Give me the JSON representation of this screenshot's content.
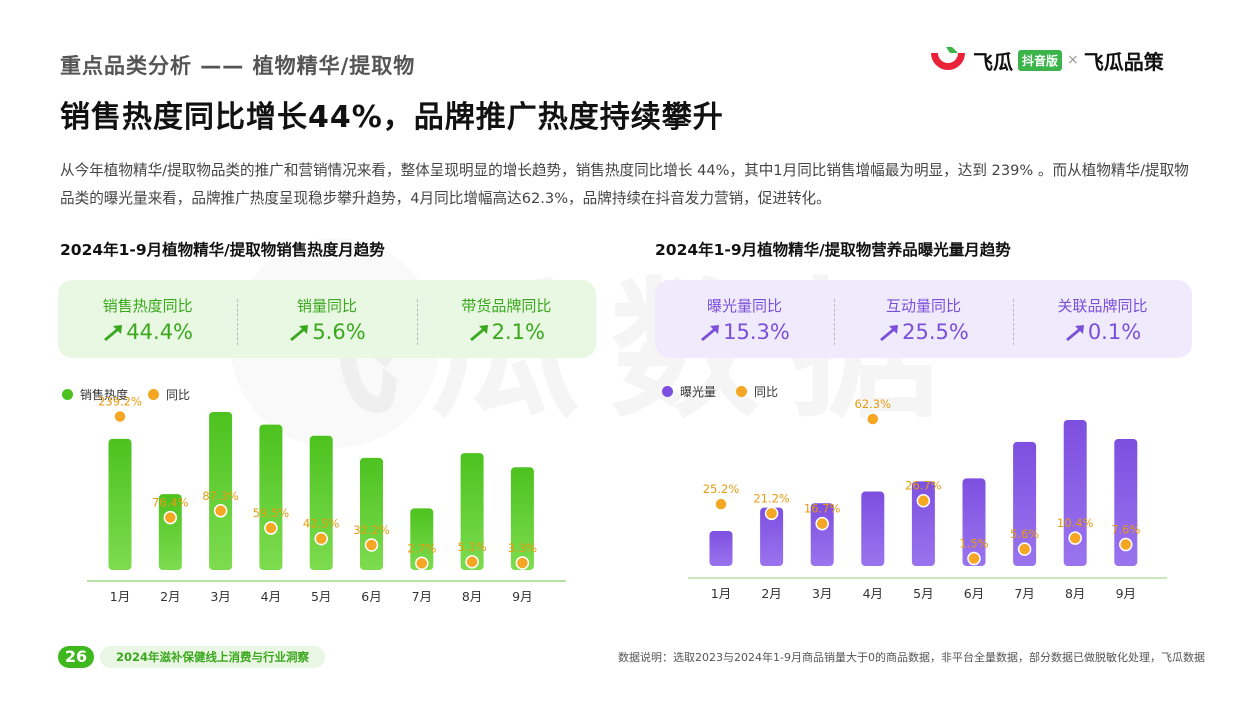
{
  "header": {
    "section_title": "重点品类分析 —— 植物精华/提取物",
    "headline": "销售热度同比增长44%，品牌推广热度持续攀升",
    "paragraph": "从今年植物精华/提取物品类的推广和营销情况来看，整体呈现明显的增长趋势，销售热度同比增长 44%，其中1月同比销售增幅最为明显，达到 239% 。而从植物精华/提取物品类的曝光量来看，品牌推广热度呈现稳步攀升趋势，4月同比增幅高达62.3%，品牌持续在抖音发力营销，促进转化。"
  },
  "brand": {
    "name1": "飞瓜",
    "badge": "抖音版",
    "separator": "×",
    "name2": "飞瓜品策"
  },
  "watermark": "飞瓜数据",
  "left": {
    "title": "2024年1-9月植物精华/提取物销售热度月趋势",
    "metrics": [
      {
        "label": "销售热度同比",
        "value": "44.4%"
      },
      {
        "label": "销量同比",
        "value": "5.6%"
      },
      {
        "label": "带货品牌同比",
        "value": "2.1%"
      }
    ],
    "legend": {
      "bar": "销售热度",
      "dot": "同比"
    }
  },
  "right": {
    "title": "2024年1-9月植物精华/提取物营养品曝光量月趋势",
    "metrics": [
      {
        "label": "曝光量同比",
        "value": "15.3%"
      },
      {
        "label": "互动量同比",
        "value": "25.5%"
      },
      {
        "label": "关联品牌同比",
        "value": "0.1%"
      }
    ],
    "legend": {
      "bar": "曝光量",
      "dot": "同比"
    }
  },
  "colors": {
    "green": "#4cc21f",
    "purple": "#7d4fe0",
    "orange": "#f5a623"
  },
  "chart_data": [
    {
      "type": "bar",
      "title": "2024年1-9月植物精华/提取物销售热度月趋势",
      "categories": [
        "1月",
        "2月",
        "3月",
        "4月",
        "5月",
        "6月",
        "7月",
        "8月",
        "9月"
      ],
      "series": [
        {
          "name": "销售热度",
          "values": [
            83,
            48,
            100,
            92,
            85,
            71,
            39,
            74,
            65
          ]
        },
        {
          "name": "同比",
          "values": [
            239.2,
            76.4,
            87.3,
            59.5,
            42.5,
            32.2,
            2.7,
            5.1,
            3.3
          ],
          "labels": [
            "239.2%",
            "76.4%",
            "87.3%",
            "59.5%",
            "42.5%",
            "32.2%",
            "2.7%",
            "5.1%",
            "3.3%"
          ]
        }
      ],
      "legend": "top-left",
      "grid": false
    },
    {
      "type": "bar",
      "title": "2024年1-9月植物精华/提取物营养品曝光量月趋势",
      "categories": [
        "1月",
        "2月",
        "3月",
        "4月",
        "5月",
        "6月",
        "7月",
        "8月",
        "9月"
      ],
      "series": [
        {
          "name": "曝光量",
          "values": [
            24,
            40,
            43,
            51,
            58,
            60,
            85,
            100,
            87
          ]
        },
        {
          "name": "同比",
          "values": [
            25.2,
            21.2,
            16.7,
            62.3,
            26.7,
            1.5,
            5.6,
            10.4,
            7.6
          ],
          "labels": [
            "25.2%",
            "21.2%",
            "16.7%",
            "62.3%",
            "26.7%",
            "1.5%",
            "5.6%",
            "10.4%",
            "7.6%"
          ]
        }
      ],
      "legend": "top-left",
      "grid": false
    }
  ],
  "footer": {
    "page_number": "26",
    "report_title": "2024年滋补保健线上消费与行业洞察",
    "note": "数据说明：选取2023与2024年1-9月商品销量大于0的商品数据，非平台全量数据，部分数据已做脱敏化处理，飞瓜数据"
  }
}
